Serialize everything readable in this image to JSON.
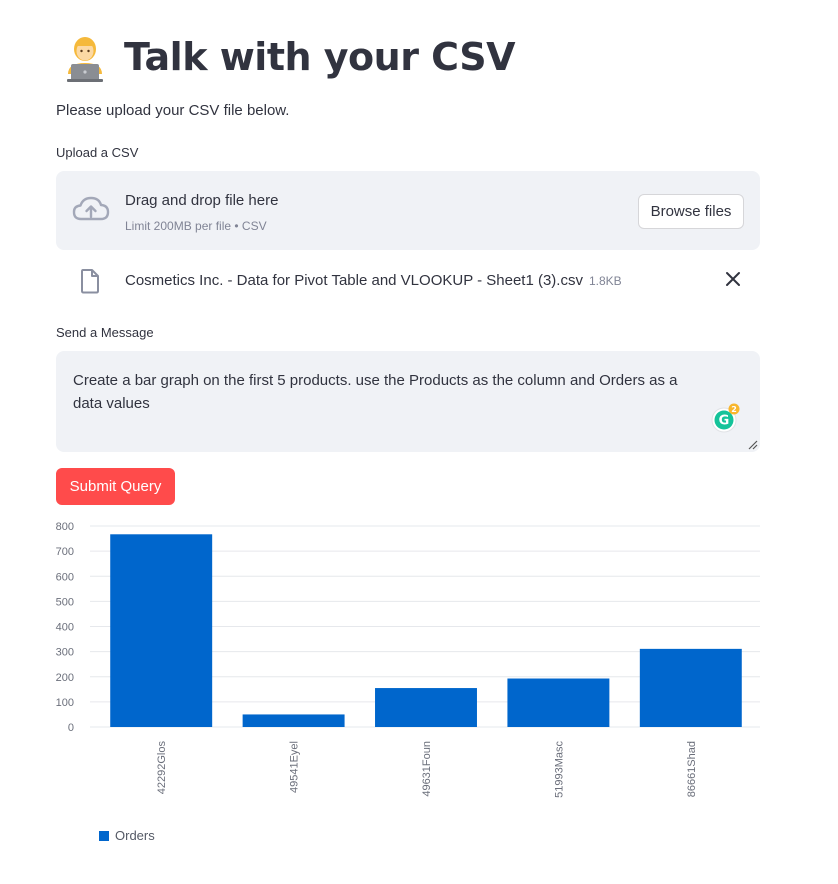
{
  "header": {
    "title": "Talk with your CSV",
    "emoji_icon": "technologist-emoji-icon"
  },
  "intro_text": "Please upload your CSV file below.",
  "uploader": {
    "label": "Upload a CSV",
    "drag_text": "Drag and drop file here",
    "limit_text": "Limit 200MB per file • CSV",
    "browse_label": "Browse files",
    "file": {
      "name": "Cosmetics Inc. - Data for Pivot Table and VLOOKUP - Sheet1 (3).csv",
      "size": "1.8KB"
    }
  },
  "message": {
    "label": "Send a Message",
    "value": "Create a bar graph on the first 5 products. use the Products as the column and Orders as a data values",
    "grammarly_count": "2"
  },
  "submit_label": "Submit Query",
  "colors": {
    "bar": "#0066cc",
    "submit": "#ff4b4b",
    "panel": "#f0f2f6"
  },
  "chart_data": {
    "type": "bar",
    "categories": [
      "42292Glos",
      "49541Eyel",
      "49631Foun",
      "51993Masc",
      "86661Shad"
    ],
    "series": [
      {
        "name": "Orders",
        "values": [
          767,
          50,
          155,
          193,
          311
        ]
      }
    ],
    "yticks": [
      0,
      100,
      200,
      300,
      400,
      500,
      600,
      700,
      800
    ],
    "ylim": [
      0,
      800
    ],
    "grid": true,
    "legend": "bottom-left"
  }
}
